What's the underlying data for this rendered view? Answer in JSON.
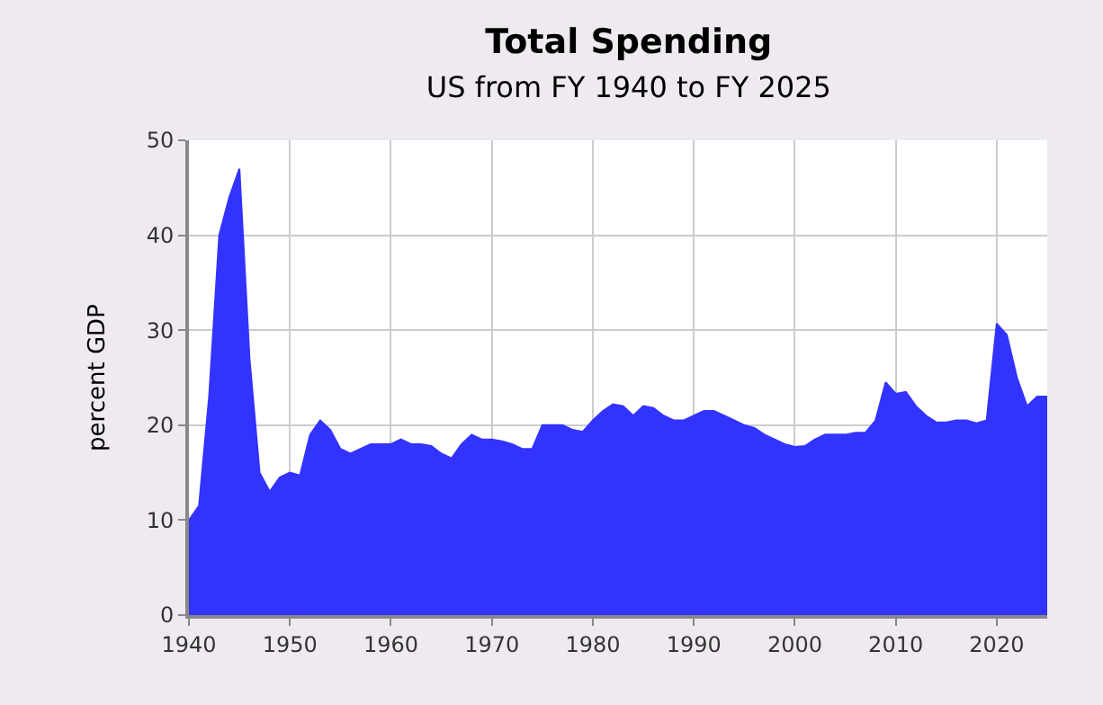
{
  "chart_data": {
    "type": "area",
    "title": "Total Spending",
    "subtitle": "US from FY 1940 to FY 2025",
    "ylabel": "percent GDP",
    "x": [
      1940,
      1941,
      1942,
      1943,
      1944,
      1945,
      1946,
      1947,
      1948,
      1949,
      1950,
      1951,
      1952,
      1953,
      1954,
      1955,
      1956,
      1957,
      1958,
      1959,
      1960,
      1961,
      1962,
      1963,
      1964,
      1965,
      1966,
      1967,
      1968,
      1969,
      1970,
      1971,
      1972,
      1973,
      1974,
      1975,
      1976,
      1977,
      1978,
      1979,
      1980,
      1981,
      1982,
      1983,
      1984,
      1985,
      1986,
      1987,
      1988,
      1989,
      1990,
      1991,
      1992,
      1993,
      1994,
      1995,
      1996,
      1997,
      1998,
      1999,
      2000,
      2001,
      2002,
      2003,
      2004,
      2005,
      2006,
      2007,
      2008,
      2009,
      2010,
      2011,
      2012,
      2013,
      2014,
      2015,
      2016,
      2017,
      2018,
      2019,
      2020,
      2021,
      2022,
      2023,
      2024,
      2025
    ],
    "series": [
      {
        "color": "#3333ff",
        "values": [
          10,
          11.5,
          23,
          40,
          44,
          47,
          27,
          15,
          13,
          14.5,
          15,
          14.7,
          19,
          20.5,
          19.5,
          17.5,
          17,
          17.5,
          18,
          18,
          18,
          18.5,
          18,
          18,
          17.8,
          17,
          16.5,
          18,
          19,
          18.5,
          18.5,
          18.3,
          18,
          17.5,
          17.5,
          20,
          20,
          20,
          19.5,
          19.3,
          20.5,
          21.5,
          22.2,
          22,
          21,
          22,
          21.8,
          21,
          20.5,
          20.5,
          21,
          21.5,
          21.5,
          21,
          20.5,
          20,
          19.7,
          19,
          18.5,
          18,
          17.7,
          17.8,
          18.5,
          19,
          19,
          19,
          19.2,
          19.2,
          20.5,
          24.5,
          23.3,
          23.5,
          22,
          21,
          20.3,
          20.3,
          20.5,
          20.5,
          20.2,
          20.5,
          30.7,
          29.5,
          25,
          22,
          23,
          23
        ]
      }
    ],
    "xlim": [
      1940,
      2025
    ],
    "xticks": [
      1940,
      1950,
      1960,
      1970,
      1980,
      1990,
      2000,
      2010,
      2020
    ],
    "ylim": [
      0,
      50
    ],
    "yticks": [
      0,
      10,
      20,
      30,
      40,
      50
    ],
    "grid": true
  }
}
